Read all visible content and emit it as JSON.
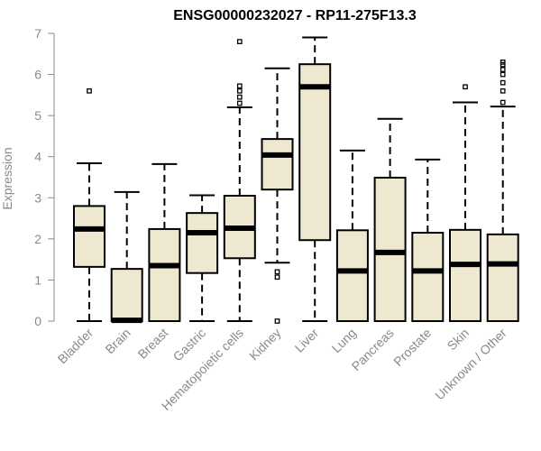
{
  "chart_data": {
    "type": "boxplot",
    "title": "ENSG00000232027 - RP11-275F13.3",
    "xlabel": "",
    "ylabel": "Expression",
    "ylim": [
      0,
      7
    ],
    "yticks": [
      "0",
      "1",
      "2",
      "3",
      "4",
      "5",
      "6",
      "7"
    ],
    "categories": [
      "Bladder",
      "Brain",
      "Breast",
      "Gastric",
      "Hematopoietic cells",
      "Kidney",
      "Liver",
      "Lung",
      "Pancreas",
      "Prostate",
      "Skin",
      "Unknown / Other"
    ],
    "series": [
      {
        "name": "Bladder",
        "min": 0,
        "q1": 1.32,
        "median": 2.24,
        "q3": 2.8,
        "max": 3.84,
        "outliers": [
          5.6
        ]
      },
      {
        "name": "Brain",
        "min": 0,
        "q1": 0,
        "median": 0.02,
        "q3": 1.27,
        "max": 3.14,
        "outliers": []
      },
      {
        "name": "Breast",
        "min": 0,
        "q1": 0,
        "median": 1.35,
        "q3": 2.24,
        "max": 3.82,
        "outliers": []
      },
      {
        "name": "Gastric",
        "min": 0,
        "q1": 1.17,
        "median": 2.15,
        "q3": 2.63,
        "max": 3.06,
        "outliers": []
      },
      {
        "name": "Hematopoietic cells",
        "min": 0,
        "q1": 1.53,
        "median": 2.26,
        "q3": 3.05,
        "max": 5.2,
        "outliers": [
          5.3,
          5.45,
          5.6,
          5.72,
          6.8
        ]
      },
      {
        "name": "Kidney",
        "min": 1.42,
        "q1": 3.2,
        "median": 4.04,
        "q3": 4.43,
        "max": 6.15,
        "outliers": [
          1.07,
          1.2,
          0
        ]
      },
      {
        "name": "Liver",
        "min": 0,
        "q1": 1.97,
        "median": 5.7,
        "q3": 6.25,
        "max": 6.9,
        "outliers": []
      },
      {
        "name": "Lung",
        "min": 0,
        "q1": 0,
        "median": 1.22,
        "q3": 2.21,
        "max": 4.15,
        "outliers": []
      },
      {
        "name": "Pancreas",
        "min": 0,
        "q1": 0,
        "median": 1.67,
        "q3": 3.49,
        "max": 4.92,
        "outliers": []
      },
      {
        "name": "Prostate",
        "min": 0,
        "q1": 0,
        "median": 1.22,
        "q3": 2.15,
        "max": 3.93,
        "outliers": []
      },
      {
        "name": "Skin",
        "min": 0,
        "q1": 0,
        "median": 1.38,
        "q3": 2.22,
        "max": 5.32,
        "outliers": [
          5.7
        ]
      },
      {
        "name": "Unknown / Other",
        "min": 0,
        "q1": 0,
        "median": 1.39,
        "q3": 2.11,
        "max": 5.22,
        "outliers": [
          5.32,
          5.6,
          5.8,
          6.0,
          6.12,
          6.24,
          6.3
        ]
      }
    ]
  }
}
